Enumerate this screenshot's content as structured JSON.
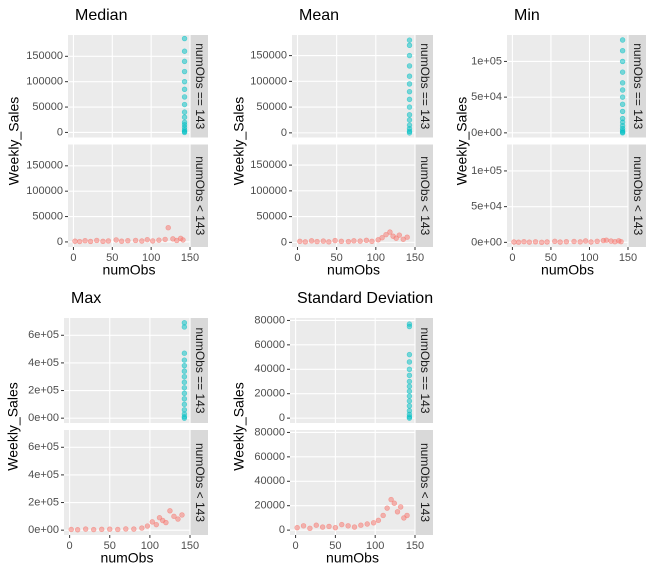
{
  "chart_data": [
    {
      "type": "scatter",
      "title": "Median",
      "x_label": "numObs",
      "y_label": "Weekly_Sales",
      "xlim": [
        -7,
        150
      ],
      "xticks": [
        0,
        50,
        100,
        150
      ],
      "ylim": [
        -10000,
        192000
      ],
      "yticks": [
        0,
        50000,
        100000,
        150000
      ],
      "grid": true,
      "facets": [
        {
          "label": "numObs == 143",
          "series": [
            {
              "color": "#00BFC4",
              "x": [
                143,
                143,
                143,
                143,
                143,
                143,
                143,
                143,
                143,
                143,
                143,
                143,
                143,
                143,
                143,
                143
              ],
              "values": [
                0,
                2000,
                5000,
                10000,
                15000,
                20000,
                30000,
                40000,
                55000,
                70000,
                85000,
                100000,
                120000,
                140000,
                160000,
                185000
              ]
            }
          ]
        },
        {
          "label": "numObs < 143",
          "series": [
            {
              "color": "#F8766D",
              "x": [
                2,
                8,
                15,
                22,
                30,
                38,
                45,
                55,
                62,
                70,
                80,
                88,
                95,
                102,
                110,
                118,
                122,
                128,
                133,
                138,
                141
              ],
              "values": [
                1500,
                800,
                2500,
                1000,
                3000,
                1200,
                2000,
                4000,
                1500,
                2500,
                3000,
                1800,
                4500,
                2000,
                3500,
                5000,
                28000,
                6000,
                3000,
                7000,
                4000
              ]
            }
          ]
        }
      ]
    },
    {
      "type": "scatter",
      "title": "Mean",
      "x_label": "numObs",
      "y_label": "Weekly_Sales",
      "xlim": [
        -7,
        150
      ],
      "xticks": [
        0,
        50,
        100,
        150
      ],
      "ylim": [
        -9000,
        190000
      ],
      "yticks": [
        0,
        50000,
        100000,
        150000
      ],
      "grid": true,
      "facets": [
        {
          "label": "numObs == 143",
          "series": [
            {
              "color": "#00BFC4",
              "x": [
                143,
                143,
                143,
                143,
                143,
                143,
                143,
                143,
                143,
                143,
                143,
                143,
                143,
                143,
                143
              ],
              "values": [
                0,
                3000,
                8000,
                15000,
                25000,
                35000,
                50000,
                65000,
                80000,
                95000,
                110000,
                130000,
                150000,
                170000,
                180000
              ]
            }
          ]
        },
        {
          "label": "numObs < 143",
          "series": [
            {
              "color": "#F8766D",
              "x": [
                3,
                10,
                18,
                25,
                33,
                40,
                48,
                56,
                65,
                72,
                80,
                88,
                95,
                103,
                108,
                113,
                118,
                122,
                126,
                130,
                135,
                140
              ],
              "values": [
                2000,
                1000,
                3000,
                1500,
                2500,
                1000,
                3500,
                2000,
                1500,
                3000,
                2500,
                4000,
                2000,
                5000,
                9000,
                15000,
                20000,
                12000,
                8000,
                14000,
                6000,
                10000
              ]
            }
          ]
        }
      ]
    },
    {
      "type": "scatter",
      "title": "Min",
      "x_label": "numObs",
      "y_label": "Weekly_Sales",
      "xlim": [
        -7,
        150
      ],
      "xticks": [
        0,
        50,
        100,
        150
      ],
      "ylim": [
        -6500,
        137000
      ],
      "yticks": [
        {
          "value": 0,
          "label": "0e+00"
        },
        {
          "value": 50000,
          "label": "5e+04"
        },
        {
          "value": 100000,
          "label": "1e+05"
        }
      ],
      "grid": true,
      "facets": [
        {
          "label": "numObs == 143",
          "series": [
            {
              "color": "#00BFC4",
              "x": [
                143,
                143,
                143,
                143,
                143,
                143,
                143,
                143,
                143,
                143,
                143,
                143,
                143,
                143,
                143,
                143
              ],
              "values": [
                0,
                1000,
                3000,
                6000,
                10000,
                15000,
                20000,
                30000,
                40000,
                50000,
                60000,
                70000,
                85000,
                100000,
                115000,
                130000
              ]
            }
          ]
        },
        {
          "label": "numObs < 143",
          "series": [
            {
              "color": "#F8766D",
              "x": [
                2,
                8,
                15,
                22,
                30,
                38,
                45,
                55,
                62,
                70,
                80,
                88,
                95,
                102,
                110,
                118,
                122,
                128,
                133,
                138,
                141
              ],
              "values": [
                500,
                200,
                1000,
                300,
                800,
                100,
                600,
                1500,
                400,
                900,
                1200,
                700,
                2000,
                500,
                1500,
                2500,
                3000,
                1800,
                900,
                2200,
                1000
              ]
            }
          ]
        }
      ]
    },
    {
      "type": "scatter",
      "title": "Max",
      "x_label": "numObs",
      "y_label": "Weekly_Sales",
      "xlim": [
        -7,
        150
      ],
      "xticks": [
        0,
        50,
        100,
        150
      ],
      "ylim": [
        -35000,
        725000
      ],
      "yticks": [
        {
          "value": 0,
          "label": "0e+00"
        },
        {
          "value": 200000,
          "label": "2e+05"
        },
        {
          "value": 400000,
          "label": "4e+05"
        },
        {
          "value": 600000,
          "label": "6e+05"
        }
      ],
      "grid": true,
      "facets": [
        {
          "label": "numObs == 143",
          "series": [
            {
              "color": "#00BFC4",
              "x": [
                143,
                143,
                143,
                143,
                143,
                143,
                143,
                143,
                143,
                143,
                143,
                143,
                143,
                143,
                143,
                143
              ],
              "values": [
                0,
                10000,
                30000,
                60000,
                100000,
                140000,
                180000,
                220000,
                260000,
                300000,
                340000,
                380000,
                420000,
                470000,
                660000,
                690000
              ]
            }
          ]
        },
        {
          "label": "numObs < 143",
          "series": [
            {
              "color": "#F8766D",
              "x": [
                2,
                10,
                20,
                30,
                40,
                50,
                60,
                70,
                80,
                90,
                97,
                103,
                108,
                112,
                116,
                120,
                125,
                130,
                135,
                140
              ],
              "values": [
                5000,
                3000,
                8000,
                4000,
                6000,
                7000,
                5000,
                9000,
                8000,
                15000,
                30000,
                60000,
                40000,
                90000,
                70000,
                55000,
                140000,
                100000,
                80000,
                110000
              ]
            }
          ]
        }
      ]
    },
    {
      "type": "scatter",
      "title": "Standard Deviation",
      "x_label": "numObs",
      "y_label": "Weekly_Sales",
      "xlim": [
        -7,
        150
      ],
      "xticks": [
        0,
        50,
        100,
        150
      ],
      "ylim": [
        -4000,
        82000
      ],
      "yticks": [
        0,
        20000,
        40000,
        60000,
        80000
      ],
      "grid": true,
      "facets": [
        {
          "label": "numObs == 143",
          "series": [
            {
              "color": "#00BFC4",
              "x": [
                143,
                143,
                143,
                143,
                143,
                143,
                143,
                143,
                143,
                143,
                143,
                143,
                143,
                143,
                143,
                143
              ],
              "values": [
                0,
                1000,
                3000,
                6000,
                10000,
                14000,
                18000,
                22000,
                26000,
                30000,
                35000,
                40000,
                46000,
                52000,
                75000,
                77000
              ]
            }
          ]
        },
        {
          "label": "numObs < 143",
          "series": [
            {
              "color": "#F8766D",
              "x": [
                2,
                10,
                18,
                26,
                34,
                42,
                50,
                58,
                66,
                74,
                82,
                90,
                98,
                104,
                110,
                115,
                120,
                124,
                128,
                132,
                136,
                140
              ],
              "values": [
                2000,
                3500,
                1500,
                4000,
                2500,
                3000,
                2000,
                4500,
                3500,
                2500,
                4000,
                5000,
                6000,
                8000,
                12000,
                18000,
                25000,
                22000,
                15000,
                19000,
                10000,
                12000
              ]
            }
          ]
        }
      ]
    }
  ]
}
